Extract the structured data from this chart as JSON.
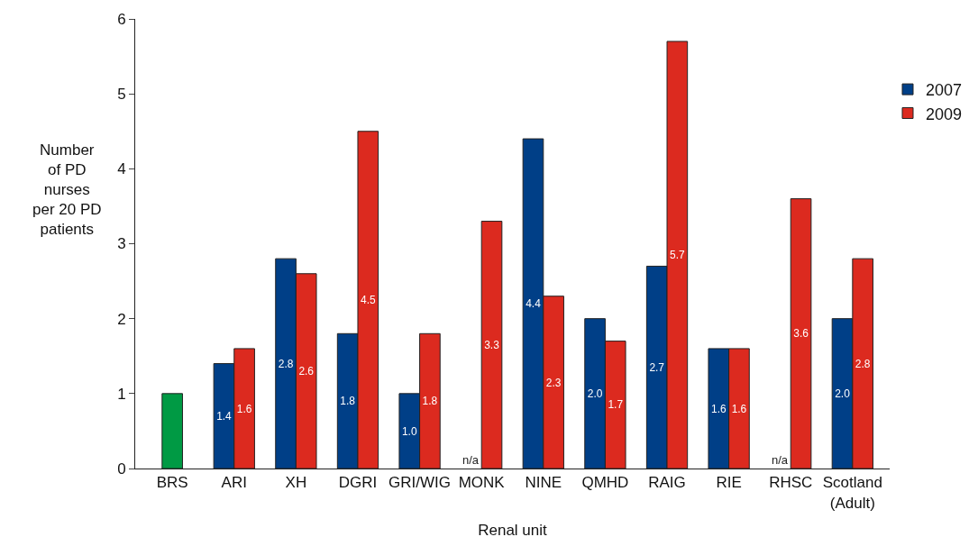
{
  "chart_data": {
    "type": "bar",
    "xlabel": "Renal unit",
    "ylabel": "Number\nof PD\nnurses\nper 20 PD\npatients",
    "categories": [
      "BRS",
      "ARI",
      "XH",
      "DGRI",
      "GRI/WIG",
      "MONK",
      "NINE",
      "QMHD",
      "RAIG",
      "RIE",
      "RHSC",
      "Scotland\n(Adult)"
    ],
    "series": [
      {
        "color": "#009a44",
        "values": [
          1.0,
          null,
          null,
          null,
          null,
          null,
          null,
          null,
          null,
          null,
          null,
          null
        ]
      },
      {
        "name": "2007",
        "color": "#003f87",
        "values": [
          null,
          1.4,
          2.8,
          1.8,
          1.0,
          null,
          4.4,
          2.0,
          2.7,
          1.6,
          null,
          2.0
        ],
        "value_labels": [
          null,
          "1.4",
          "2.8",
          "1.8",
          "1.0",
          "n/a",
          "4.4",
          "2.0",
          "2.7",
          "1.6",
          "n/a",
          "2.0"
        ]
      },
      {
        "name": "2009",
        "color": "#dc2a1f",
        "values": [
          null,
          1.6,
          2.6,
          4.5,
          1.8,
          3.3,
          2.3,
          1.7,
          5.7,
          1.6,
          3.6,
          2.8
        ],
        "value_labels": [
          null,
          "1.6",
          "2.6",
          "4.5",
          "1.8",
          "3.3",
          "2.3",
          "1.7",
          "5.7",
          "1.6",
          "3.6",
          "2.8"
        ]
      }
    ],
    "ylim": [
      0,
      6
    ],
    "yticks": [
      0,
      1,
      2,
      3,
      4,
      5,
      6
    ],
    "legend": "top right"
  }
}
